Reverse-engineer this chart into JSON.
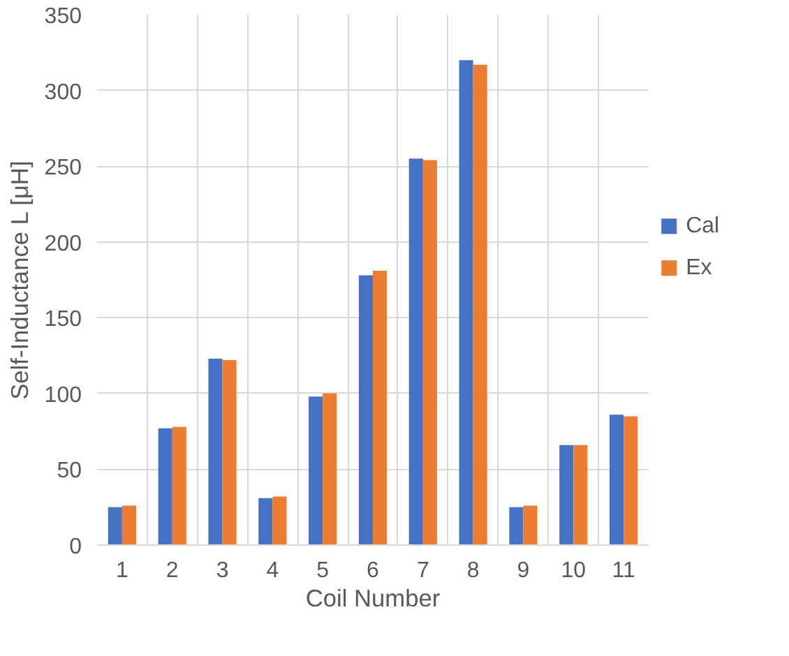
{
  "chart_data": {
    "type": "bar",
    "xlabel": "Coil Number",
    "ylabel": "Self-Inductance L [μH]",
    "categories": [
      "1",
      "2",
      "3",
      "4",
      "5",
      "6",
      "7",
      "8",
      "9",
      "10",
      "11"
    ],
    "series": [
      {
        "name": "Cal",
        "color": "#4472c4",
        "values": [
          25,
          77,
          123,
          31,
          98,
          178,
          255,
          320,
          25,
          66,
          86
        ]
      },
      {
        "name": "Ex",
        "color": "#ed7d31",
        "values": [
          26,
          78,
          122,
          32,
          100,
          181,
          254,
          317,
          26,
          66,
          85
        ]
      }
    ],
    "ylim": [
      0,
      350
    ],
    "yticks": [
      0,
      50,
      100,
      150,
      200,
      250,
      300,
      350
    ],
    "grid": true,
    "legend": "right"
  }
}
